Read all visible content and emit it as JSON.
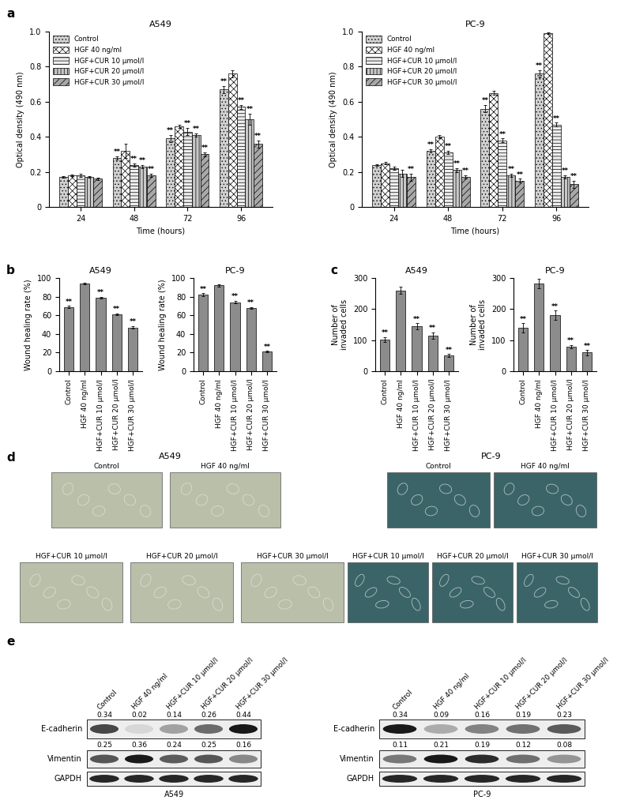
{
  "panel_labels": [
    "a",
    "b",
    "c",
    "d",
    "e"
  ],
  "chart_data": [
    {
      "type": "bar",
      "title": "A549",
      "x_label": "Time (hours)",
      "y_label": "Optical density (490 nm)",
      "categories": [
        "24",
        "48",
        "72",
        "96"
      ],
      "series": [
        {
          "name": "Control",
          "color": "#d0d0d0",
          "values": [
            0.17,
            0.28,
            0.39,
            0.67
          ],
          "errors": [
            0.005,
            0.01,
            0.02,
            0.02
          ],
          "significance": [
            null,
            "**",
            "**",
            "**"
          ]
        },
        {
          "name": "HGF 40 ng/ml",
          "color": "#ffffff",
          "values": [
            0.18,
            0.32,
            0.46,
            0.76
          ],
          "errors": [
            0.005,
            0.04,
            0.01,
            0.02
          ],
          "significance": [
            null,
            null,
            null,
            null
          ]
        },
        {
          "name": "HGF+CUR 10 μmol/l",
          "color": "#eeeeee",
          "values": [
            0.18,
            0.24,
            0.43,
            0.57
          ],
          "errors": [
            0.01,
            0.01,
            0.02,
            0.01
          ],
          "significance": [
            null,
            "**",
            "**",
            "**"
          ]
        },
        {
          "name": "HGF+CUR 20 μmol/l",
          "color": "#c8c8c8",
          "values": [
            0.17,
            0.23,
            0.41,
            0.5
          ],
          "errors": [
            0.005,
            0.01,
            0.01,
            0.03
          ],
          "significance": [
            null,
            "**",
            "**",
            "**"
          ]
        },
        {
          "name": "HGF+CUR 30 μmol/l",
          "color": "#a8a8a8",
          "values": [
            0.16,
            0.18,
            0.3,
            0.36
          ],
          "errors": [
            0.005,
            0.01,
            0.01,
            0.02
          ],
          "significance": [
            null,
            "**",
            "**",
            "**"
          ]
        }
      ],
      "ylim": [
        0,
        1.0
      ],
      "yticks": [
        0,
        0.2,
        0.4,
        0.6,
        0.8,
        1.0
      ],
      "legend": "upper left"
    },
    {
      "type": "bar",
      "title": "PC-9",
      "x_label": "Time (hours)",
      "y_label": "Optical density (490 nm)",
      "categories": [
        "24",
        "48",
        "72",
        "96"
      ],
      "series": [
        {
          "name": "Control",
          "color": "#d0d0d0",
          "values": [
            0.24,
            0.32,
            0.56,
            0.76
          ],
          "errors": [
            0.005,
            0.01,
            0.02,
            0.02
          ],
          "significance": [
            null,
            "**",
            "**",
            "**"
          ]
        },
        {
          "name": "HGF 40 ng/ml",
          "color": "#ffffff",
          "values": [
            0.25,
            0.4,
            0.65,
            0.99
          ],
          "errors": [
            0.005,
            0.01,
            0.01,
            0.005
          ],
          "significance": [
            null,
            null,
            null,
            null
          ]
        },
        {
          "name": "HGF+CUR 10 μmol/l",
          "color": "#eeeeee",
          "values": [
            0.22,
            0.31,
            0.38,
            0.47
          ],
          "errors": [
            0.01,
            0.01,
            0.01,
            0.01
          ],
          "significance": [
            null,
            "**",
            "**",
            "**"
          ]
        },
        {
          "name": "HGF+CUR 20 μmol/l",
          "color": "#c8c8c8",
          "values": [
            0.19,
            0.21,
            0.18,
            0.17
          ],
          "errors": [
            0.02,
            0.01,
            0.01,
            0.01
          ],
          "significance": [
            null,
            "**",
            "**",
            "**"
          ]
        },
        {
          "name": "HGF+CUR 30 μmol/l",
          "color": "#a8a8a8",
          "values": [
            0.17,
            0.17,
            0.15,
            0.13
          ],
          "errors": [
            0.02,
            0.01,
            0.01,
            0.02
          ],
          "significance": [
            "**",
            "**",
            "**",
            "**"
          ]
        }
      ],
      "ylim": [
        0,
        1.0
      ],
      "yticks": [
        0,
        0.2,
        0.4,
        0.6,
        0.8,
        1.0
      ],
      "legend": "upper left"
    },
    {
      "type": "bar",
      "title": "A549",
      "y_label": "Wound healing rate (%)",
      "categories": [
        "Control",
        "HGF 40 ng/ml",
        "HGF+CUR 10 μmol/l",
        "HGF+CUR 20 μmol/l",
        "HGF+CUR 30 μmol/l"
      ],
      "values": [
        69,
        94,
        79,
        61,
        47
      ],
      "errors": [
        1,
        0.5,
        1,
        1,
        1.5
      ],
      "significance": [
        "**",
        null,
        "**",
        "**",
        "**"
      ],
      "color": "#8c8c8c",
      "ylim": [
        0,
        100
      ],
      "yticks": [
        0,
        20,
        40,
        60,
        80,
        100
      ]
    },
    {
      "type": "bar",
      "title": "PC-9",
      "y_label": "Wound healing rate (%)",
      "categories": [
        "Control",
        "HGF 40 ng/ml",
        "HGF+CUR 10 μmol/l",
        "HGF+CUR 20 μmol/l",
        "HGF+CUR 30 μmol/l"
      ],
      "values": [
        82,
        92,
        74,
        68,
        21
      ],
      "errors": [
        1.5,
        1,
        1.5,
        1,
        1
      ],
      "significance": [
        "**",
        null,
        "**",
        "**",
        "**"
      ],
      "color": "#8c8c8c",
      "ylim": [
        0,
        100
      ],
      "yticks": [
        0,
        20,
        40,
        60,
        80,
        100
      ]
    },
    {
      "type": "bar",
      "title": "A549",
      "y_label": "Number of\ninvaded cells",
      "categories": [
        "Control",
        "HGF 40 ng/ml",
        "HGF+CUR 10 μmol/l",
        "HGF+CUR 20 μmol/l",
        "HGF+CUR 30 μmol/l"
      ],
      "values": [
        102,
        260,
        145,
        115,
        50
      ],
      "errors": [
        8,
        12,
        10,
        10,
        5
      ],
      "significance": [
        "**",
        null,
        "**",
        "**",
        "**"
      ],
      "color": "#8c8c8c",
      "ylim": [
        0,
        300
      ],
      "yticks": [
        0,
        100,
        200,
        300
      ]
    },
    {
      "type": "bar",
      "title": "PC-9",
      "y_label": "Number of\ninvaded cells",
      "categories": [
        "Control",
        "HGF 40 ng/ml",
        "HGF+CUR 10 μmol/l",
        "HGF+CUR 20 μmol/l",
        "HGF+CUR 30 μmol/l"
      ],
      "values": [
        140,
        282,
        180,
        80,
        60
      ],
      "errors": [
        15,
        15,
        15,
        5,
        8
      ],
      "significance": [
        "**",
        null,
        "**",
        "**",
        "**"
      ],
      "color": "#8c8c8c",
      "ylim": [
        0,
        300
      ],
      "yticks": [
        0,
        100,
        200,
        300
      ]
    }
  ],
  "images": [
    {
      "title": "A549",
      "labels": [
        "Control",
        "HGF 40 ng/ml",
        "HGF+CUR 10 μmol/l",
        "HGF+CUR 20 μmol/l",
        "HGF+CUR 30 μmol/l"
      ]
    },
    {
      "title": "PC-9",
      "labels": [
        "Control",
        "HGF 40 ng/ml",
        "HGF+CUR 10 μmol/l",
        "HGF+CUR 20 μmol/l",
        "HGF+CUR 30 μmol/l"
      ]
    }
  ],
  "blots": [
    {
      "title": "A549",
      "lanes": [
        "Control",
        "HGF 40 ng/ml",
        "HGF+CUR 10 μmol/l",
        "HGF+CUR 20 μmol/l",
        "HGF+CUR 30 μmol/l"
      ],
      "rows": [
        {
          "name": "E-cadherin",
          "values": [
            0.34,
            0.02,
            0.14,
            0.26,
            0.44
          ]
        },
        {
          "name": "Vimentin",
          "values": [
            0.25,
            0.36,
            0.24,
            0.25,
            0.16
          ]
        },
        {
          "name": "GAPDH"
        }
      ]
    },
    {
      "title": "PC-9",
      "lanes": [
        "Control",
        "HGF 40 ng/ml",
        "HGF+CUR 10 μmol/l",
        "HGF+CUR 20 μmol/l",
        "HGF+CUR 30 μmol/l"
      ],
      "rows": [
        {
          "name": "E-cadherin",
          "values": [
            0.34,
            0.09,
            0.16,
            0.19,
            0.23
          ]
        },
        {
          "name": "Vimentin",
          "values": [
            0.11,
            0.21,
            0.19,
            0.12,
            0.08
          ]
        },
        {
          "name": "GAPDH"
        }
      ]
    }
  ]
}
